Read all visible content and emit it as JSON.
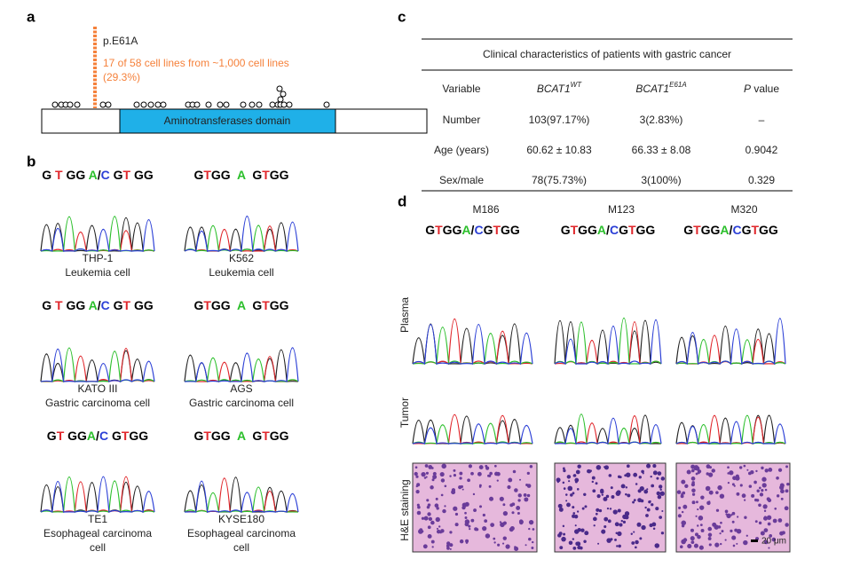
{
  "panels": {
    "a": "a",
    "b": "b",
    "c": "c",
    "d": "d"
  },
  "lollipop": {
    "mutation": "p.E61A",
    "note_line1": "17 of 58 cell lines from ~1,000 cell lines",
    "note_line2": "(29.3%)",
    "domain": "Aminotransferases domain"
  },
  "sanger": [
    {
      "sequence": "G T GG A/C GT GG",
      "line1": "THP-1",
      "line2": "Leukemia cell"
    },
    {
      "sequence": "GTGG  A  GTGG",
      "line1": "K562",
      "line2": "Leukemia cell"
    },
    {
      "sequence": "G T GG A/C GT GG",
      "line1": "KATO III",
      "line2": "Gastric carcinoma cell"
    },
    {
      "sequence": "GTGG  A  GTGG",
      "line1": "AGS",
      "line2": "Gastric carcinoma cell"
    },
    {
      "sequence": "GT GGA/C GTGG",
      "line1": "TE1",
      "line2": "Esophageal carcinoma",
      "line3": "cell"
    },
    {
      "sequence": "GTGG  A  GTGG",
      "line1": "KYSE180",
      "line2": "Esophageal carcinoma",
      "line3": "cell"
    }
  ],
  "table": {
    "title": "Clinical characteristics of patients with gastric cancer",
    "header": [
      {
        "text": "Variable"
      },
      {
        "text": "BCAT1",
        "sup": "WT"
      },
      {
        "text": "BCAT1",
        "sup": "E61A"
      },
      {
        "text": "P",
        "rest": " value"
      }
    ],
    "rows": [
      [
        "Number",
        "103(97.17%)",
        "3(2.83%)",
        "–"
      ],
      [
        "Age (years)",
        "60.62 ± 10.83",
        "66.33 ± 8.08",
        "0.9042"
      ],
      [
        "Sex/male",
        "78(75.73%)",
        "3(100%)",
        "0.329"
      ]
    ]
  },
  "patients": {
    "samples": [
      {
        "name": "M186",
        "sequence": "GTGGA/CGTGG"
      },
      {
        "name": "M123",
        "sequence": "GTGGA/CGTGG"
      },
      {
        "name": "M320",
        "sequence": "GTGGA/CGTGG"
      }
    ],
    "rows": [
      "Plasma",
      "Tumor",
      "H&E staining"
    ],
    "scale": "20 μm"
  }
}
